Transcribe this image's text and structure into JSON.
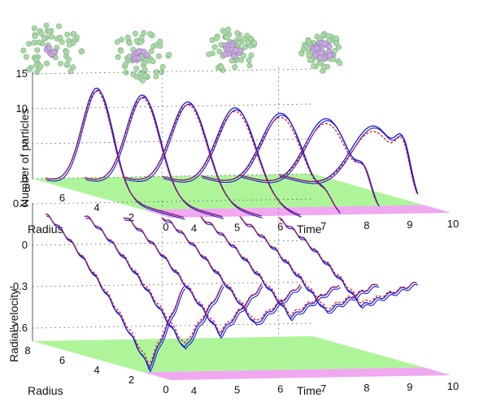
{
  "chart_data": [
    {
      "type": "line",
      "panel": "top",
      "ylabel": "Number of particles",
      "radius_label": "Radius",
      "time_label": "Time",
      "yticks": [
        "0",
        "5",
        "10",
        "15"
      ],
      "radius_ticks": [
        "8",
        "6",
        "4",
        "2",
        "0"
      ],
      "time_ticks": [
        "4",
        "5",
        "6",
        "7",
        "8",
        "9",
        "10"
      ],
      "ylim": [
        0,
        15
      ],
      "radius_range": [
        0,
        8
      ],
      "time_range": [
        3.5,
        10
      ],
      "snapshots_time": [
        3.8,
        4.7,
        5.6,
        6.5,
        7.4,
        8.3,
        9.2
      ],
      "series": [
        {
          "color": "#1a1ad6",
          "peaks": [
            {
              "time": 3.8,
              "radius": 5.0,
              "value": 15.0
            },
            {
              "time": 4.7,
              "radius": 4.6,
              "value": 14.2
            },
            {
              "time": 5.6,
              "radius": 4.2,
              "value": 13.4
            },
            {
              "time": 6.5,
              "radius": 3.7,
              "value": 12.8
            },
            {
              "time": 7.4,
              "radius": 3.3,
              "value": 12.2
            },
            {
              "time": 8.3,
              "radius": 2.9,
              "value": 11.6
            },
            {
              "time": 9.2,
              "radius": 2.4,
              "value": 10.8
            }
          ]
        },
        {
          "color": "#e0201a",
          "peaks": [
            {
              "time": 3.8,
              "radius": 5.0,
              "value": 14.6
            },
            {
              "time": 4.7,
              "radius": 4.6,
              "value": 13.8
            },
            {
              "time": 5.6,
              "radius": 4.2,
              "value": 13.0
            },
            {
              "time": 6.5,
              "radius": 3.7,
              "value": 12.3
            },
            {
              "time": 7.4,
              "radius": 3.3,
              "value": 11.6
            },
            {
              "time": 8.3,
              "radius": 2.9,
              "value": 10.9
            },
            {
              "time": 9.2,
              "radius": 2.4,
              "value": 10.0
            }
          ]
        }
      ]
    },
    {
      "type": "line",
      "panel": "bottom",
      "ylabel": "Radial velocity",
      "radius_label": "Radius",
      "time_label": "Time",
      "yticks": [
        "0.3",
        "0",
        "-0.3",
        "-0.6"
      ],
      "radius_ticks": [
        "8",
        "6",
        "4",
        "2",
        "0"
      ],
      "time_ticks": [
        "4",
        "5",
        "6",
        "7",
        "8",
        "9",
        "10"
      ],
      "ylim": [
        -0.6,
        0.3
      ],
      "radius_range": [
        0,
        8
      ],
      "time_range": [
        3.5,
        10
      ],
      "snapshots_time": [
        3.8,
        4.7,
        5.6,
        6.5,
        7.4,
        8.3,
        9.2
      ],
      "series": [
        {
          "color": "#1a1ad6",
          "minima": [
            {
              "time": 3.8,
              "radius": 2.0,
              "value": -0.68
            },
            {
              "time": 4.7,
              "radius": 2.2,
              "value": -0.55
            },
            {
              "time": 5.6,
              "radius": 2.4,
              "value": -0.46
            },
            {
              "time": 6.5,
              "radius": 2.6,
              "value": -0.4
            },
            {
              "time": 7.4,
              "radius": 2.8,
              "value": -0.36
            },
            {
              "time": 8.3,
              "radius": 3.0,
              "value": -0.33
            },
            {
              "time": 9.2,
              "radius": 3.2,
              "value": -0.3
            }
          ]
        },
        {
          "color": "#e0201a",
          "minima": [
            {
              "time": 3.8,
              "radius": 2.0,
              "value": -0.65
            },
            {
              "time": 4.7,
              "radius": 2.2,
              "value": -0.52
            },
            {
              "time": 5.6,
              "radius": 2.4,
              "value": -0.44
            },
            {
              "time": 6.5,
              "radius": 2.6,
              "value": -0.38
            },
            {
              "time": 7.4,
              "radius": 2.8,
              "value": -0.34
            },
            {
              "time": 8.3,
              "radius": 3.0,
              "value": -0.31
            },
            {
              "time": 9.2,
              "radius": 3.2,
              "value": -0.28
            }
          ]
        }
      ]
    }
  ],
  "colors": {
    "blue": "#1a1ad6",
    "red": "#e0201a",
    "floor_green": "#aef59a",
    "floor_magenta": "#f0a8f0",
    "particle_outer": "#a9d9a8",
    "particle_inner": "#c9a8de"
  },
  "particle_snapshots": [
    {
      "label": "snapshot-1",
      "count": 60
    },
    {
      "label": "snapshot-2",
      "count": 60
    },
    {
      "label": "snapshot-3",
      "count": 60
    },
    {
      "label": "snapshot-4",
      "count": 60
    }
  ]
}
